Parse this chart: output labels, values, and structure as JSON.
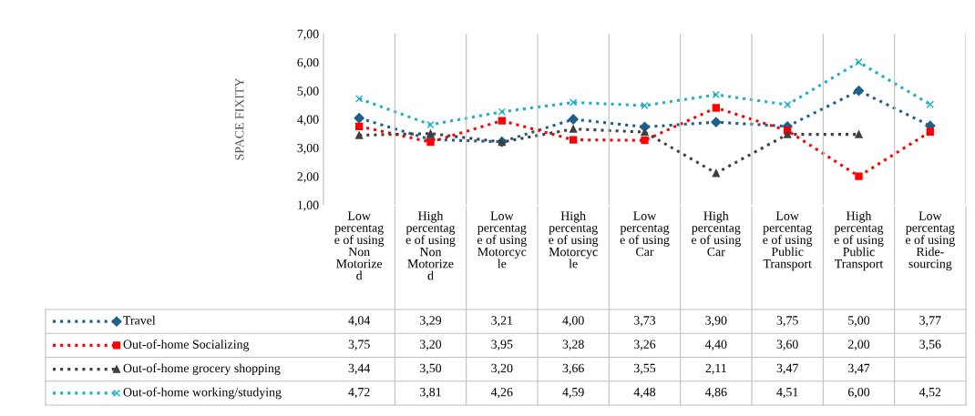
{
  "chart_data": {
    "type": "line",
    "ylabel": "SPACE FIXITY",
    "categories": [
      "Low\npercentag\ne of using\nNon\nMotorize\nd",
      "High\npercentag\ne of using\nNon\nMotorize\nd",
      "Low\npercentag\ne of using\nMotorcyc\nle",
      "High\npercentag\ne of using\nMotorcyc\nle",
      "Low\npercentag\ne of using\nCar",
      "High\npercentag\ne of using\nCar",
      "Low\npercentag\ne of using\nPublic\nTransport",
      "High\npercentag\ne of using\nPublic\nTransport",
      "Low\npercentag\ne of using\nRide-\nsourcing"
    ],
    "ylim": [
      1,
      7
    ],
    "yticks": [
      {
        "value": 1,
        "label": "1,00"
      },
      {
        "value": 2,
        "label": "2,00"
      },
      {
        "value": 3,
        "label": "3,00"
      },
      {
        "value": 4,
        "label": "4,00"
      },
      {
        "value": 5,
        "label": "5,00"
      },
      {
        "value": 6,
        "label": "6,00"
      },
      {
        "value": 7,
        "label": "7,00"
      }
    ],
    "line_style": "dotted",
    "legend": "bottom",
    "grid": false,
    "series": [
      {
        "name": "Travel",
        "color": "#1f5f8b",
        "marker": "diamond",
        "values": [
          4.04,
          3.29,
          3.21,
          4.0,
          3.73,
          3.9,
          3.75,
          5.0,
          3.77
        ],
        "value_labels": [
          "4,04",
          "3,29",
          "3,21",
          "4,00",
          "3,73",
          "3,90",
          "3,75",
          "5,00",
          "3,77"
        ]
      },
      {
        "name": "Out-of-home Socializing",
        "color": "#ff0000",
        "marker": "square",
        "values": [
          3.75,
          3.2,
          3.95,
          3.28,
          3.26,
          4.4,
          3.6,
          2.0,
          3.56
        ],
        "value_labels": [
          "3,75",
          "3,20",
          "3,95",
          "3,28",
          "3,26",
          "4,40",
          "3,60",
          "2,00",
          "3,56"
        ]
      },
      {
        "name": "Out-of-home grocery shopping",
        "color": "#404040",
        "marker": "triangle",
        "values": [
          3.44,
          3.5,
          3.2,
          3.66,
          3.55,
          2.11,
          3.47,
          3.47,
          null
        ],
        "value_labels": [
          "3,44",
          "3,50",
          "3,20",
          "3,66",
          "3,55",
          "2,11",
          "3,47",
          "3,47",
          null
        ]
      },
      {
        "name": "Out-of-home working/studying",
        "color": "#1ab0c8",
        "marker": "cross",
        "values": [
          4.72,
          3.81,
          4.26,
          4.59,
          4.48,
          4.86,
          4.51,
          6.0,
          4.52
        ],
        "value_labels": [
          "4,72",
          "3,81",
          "4,26",
          "4,59",
          "4,48",
          "4,86",
          "4,51",
          "6,00",
          "4,52"
        ]
      }
    ]
  }
}
